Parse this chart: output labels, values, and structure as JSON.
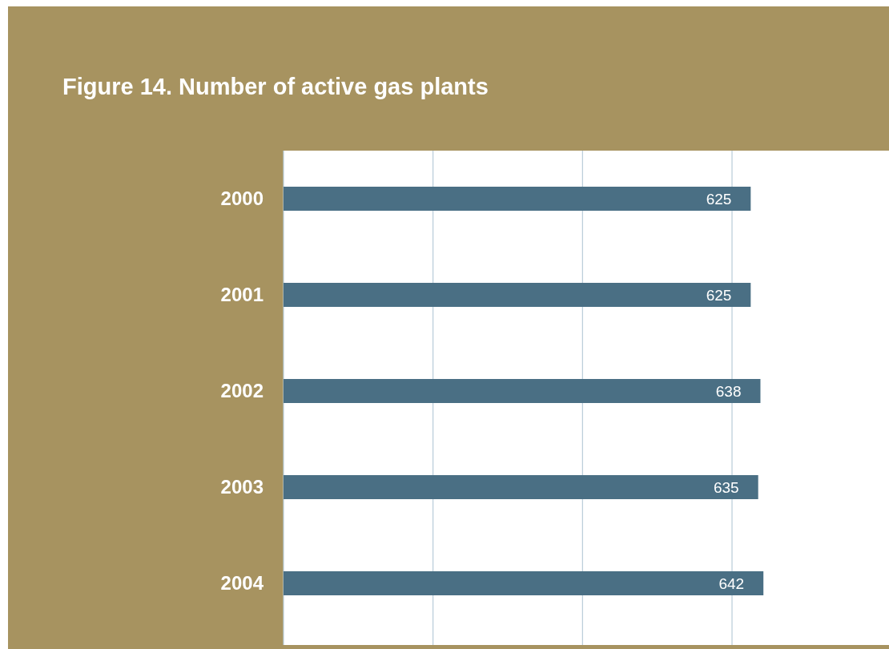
{
  "chart_data": {
    "type": "bar",
    "orientation": "horizontal",
    "title": "Figure 14. Number of active gas plants",
    "categories": [
      "2000",
      "2001",
      "2002",
      "2003",
      "2004"
    ],
    "values": [
      625,
      625,
      638,
      635,
      642
    ],
    "color": "#4a6f84",
    "xlim": [
      0,
      810
    ],
    "xticks": [
      {
        "value": 0,
        "label": null
      },
      {
        "value": 200,
        "label": null
      },
      {
        "value": 400,
        "label": null
      },
      {
        "value": 600,
        "label": null
      }
    ],
    "grid": "x",
    "tick_labels": "y",
    "data_labels": true
  }
}
